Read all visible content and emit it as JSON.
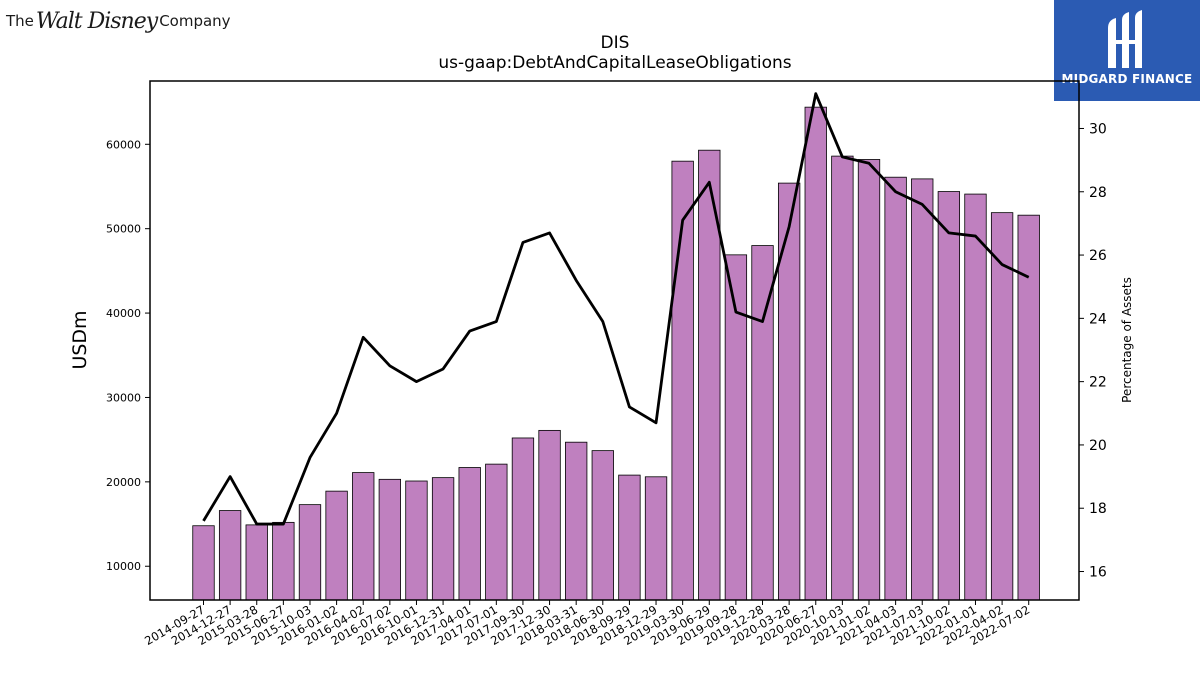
{
  "brand": {
    "company_logo_text": "The Walt Disney Company",
    "partner_logo_text": "MIDGARD FINANCE"
  },
  "chart_data": {
    "type": "bar",
    "title": "DIS",
    "subtitle": "us-gaap:DebtAndCapitalLeaseObligations",
    "ylabel": "USDm",
    "y2label": "Percentage of Assets",
    "ylim": [
      6000,
      67500
    ],
    "y2lim": [
      15.1,
      31.5
    ],
    "yticks": [
      10000,
      20000,
      30000,
      40000,
      50000,
      60000
    ],
    "y2ticks": [
      16,
      18,
      20,
      22,
      24,
      26,
      28,
      30
    ],
    "bar_color": "#bf80bf",
    "line_color": "#000000",
    "categories": [
      "2014-09-27",
      "2014-12-27",
      "2015-03-28",
      "2015-06-27",
      "2015-10-03",
      "2016-01-02",
      "2016-04-02",
      "2016-07-02",
      "2016-10-01",
      "2016-12-31",
      "2017-04-01",
      "2017-07-01",
      "2017-09-30",
      "2017-12-30",
      "2018-03-31",
      "2018-06-30",
      "2018-09-29",
      "2018-12-29",
      "2019-03-30",
      "2019-06-29",
      "2019-09-28",
      "2019-12-28",
      "2020-03-28",
      "2020-06-27",
      "2020-10-03",
      "2021-01-02",
      "2021-04-03",
      "2021-07-03",
      "2021-10-02",
      "2022-01-01",
      "2022-04-02",
      "2022-07-02"
    ],
    "series": [
      {
        "kind": "bar",
        "axis": "left",
        "values": [
          14800,
          16600,
          14900,
          15200,
          17300,
          18900,
          21100,
          20300,
          20100,
          20500,
          21700,
          22100,
          25200,
          26100,
          24700,
          23700,
          20800,
          20600,
          58000,
          59300,
          46900,
          48000,
          55400,
          64400,
          58600,
          58200,
          56100,
          55900,
          54400,
          54100,
          51900,
          51600
        ]
      },
      {
        "kind": "line",
        "axis": "right",
        "values": [
          17.6,
          19.0,
          17.5,
          17.5,
          19.6,
          21.0,
          23.4,
          22.5,
          22.0,
          22.4,
          23.6,
          23.9,
          26.4,
          26.7,
          25.2,
          23.9,
          21.2,
          20.7,
          27.1,
          28.3,
          24.2,
          23.9,
          26.9,
          31.1,
          29.1,
          28.9,
          28.0,
          27.6,
          26.7,
          26.6,
          25.7,
          25.3
        ]
      }
    ]
  }
}
